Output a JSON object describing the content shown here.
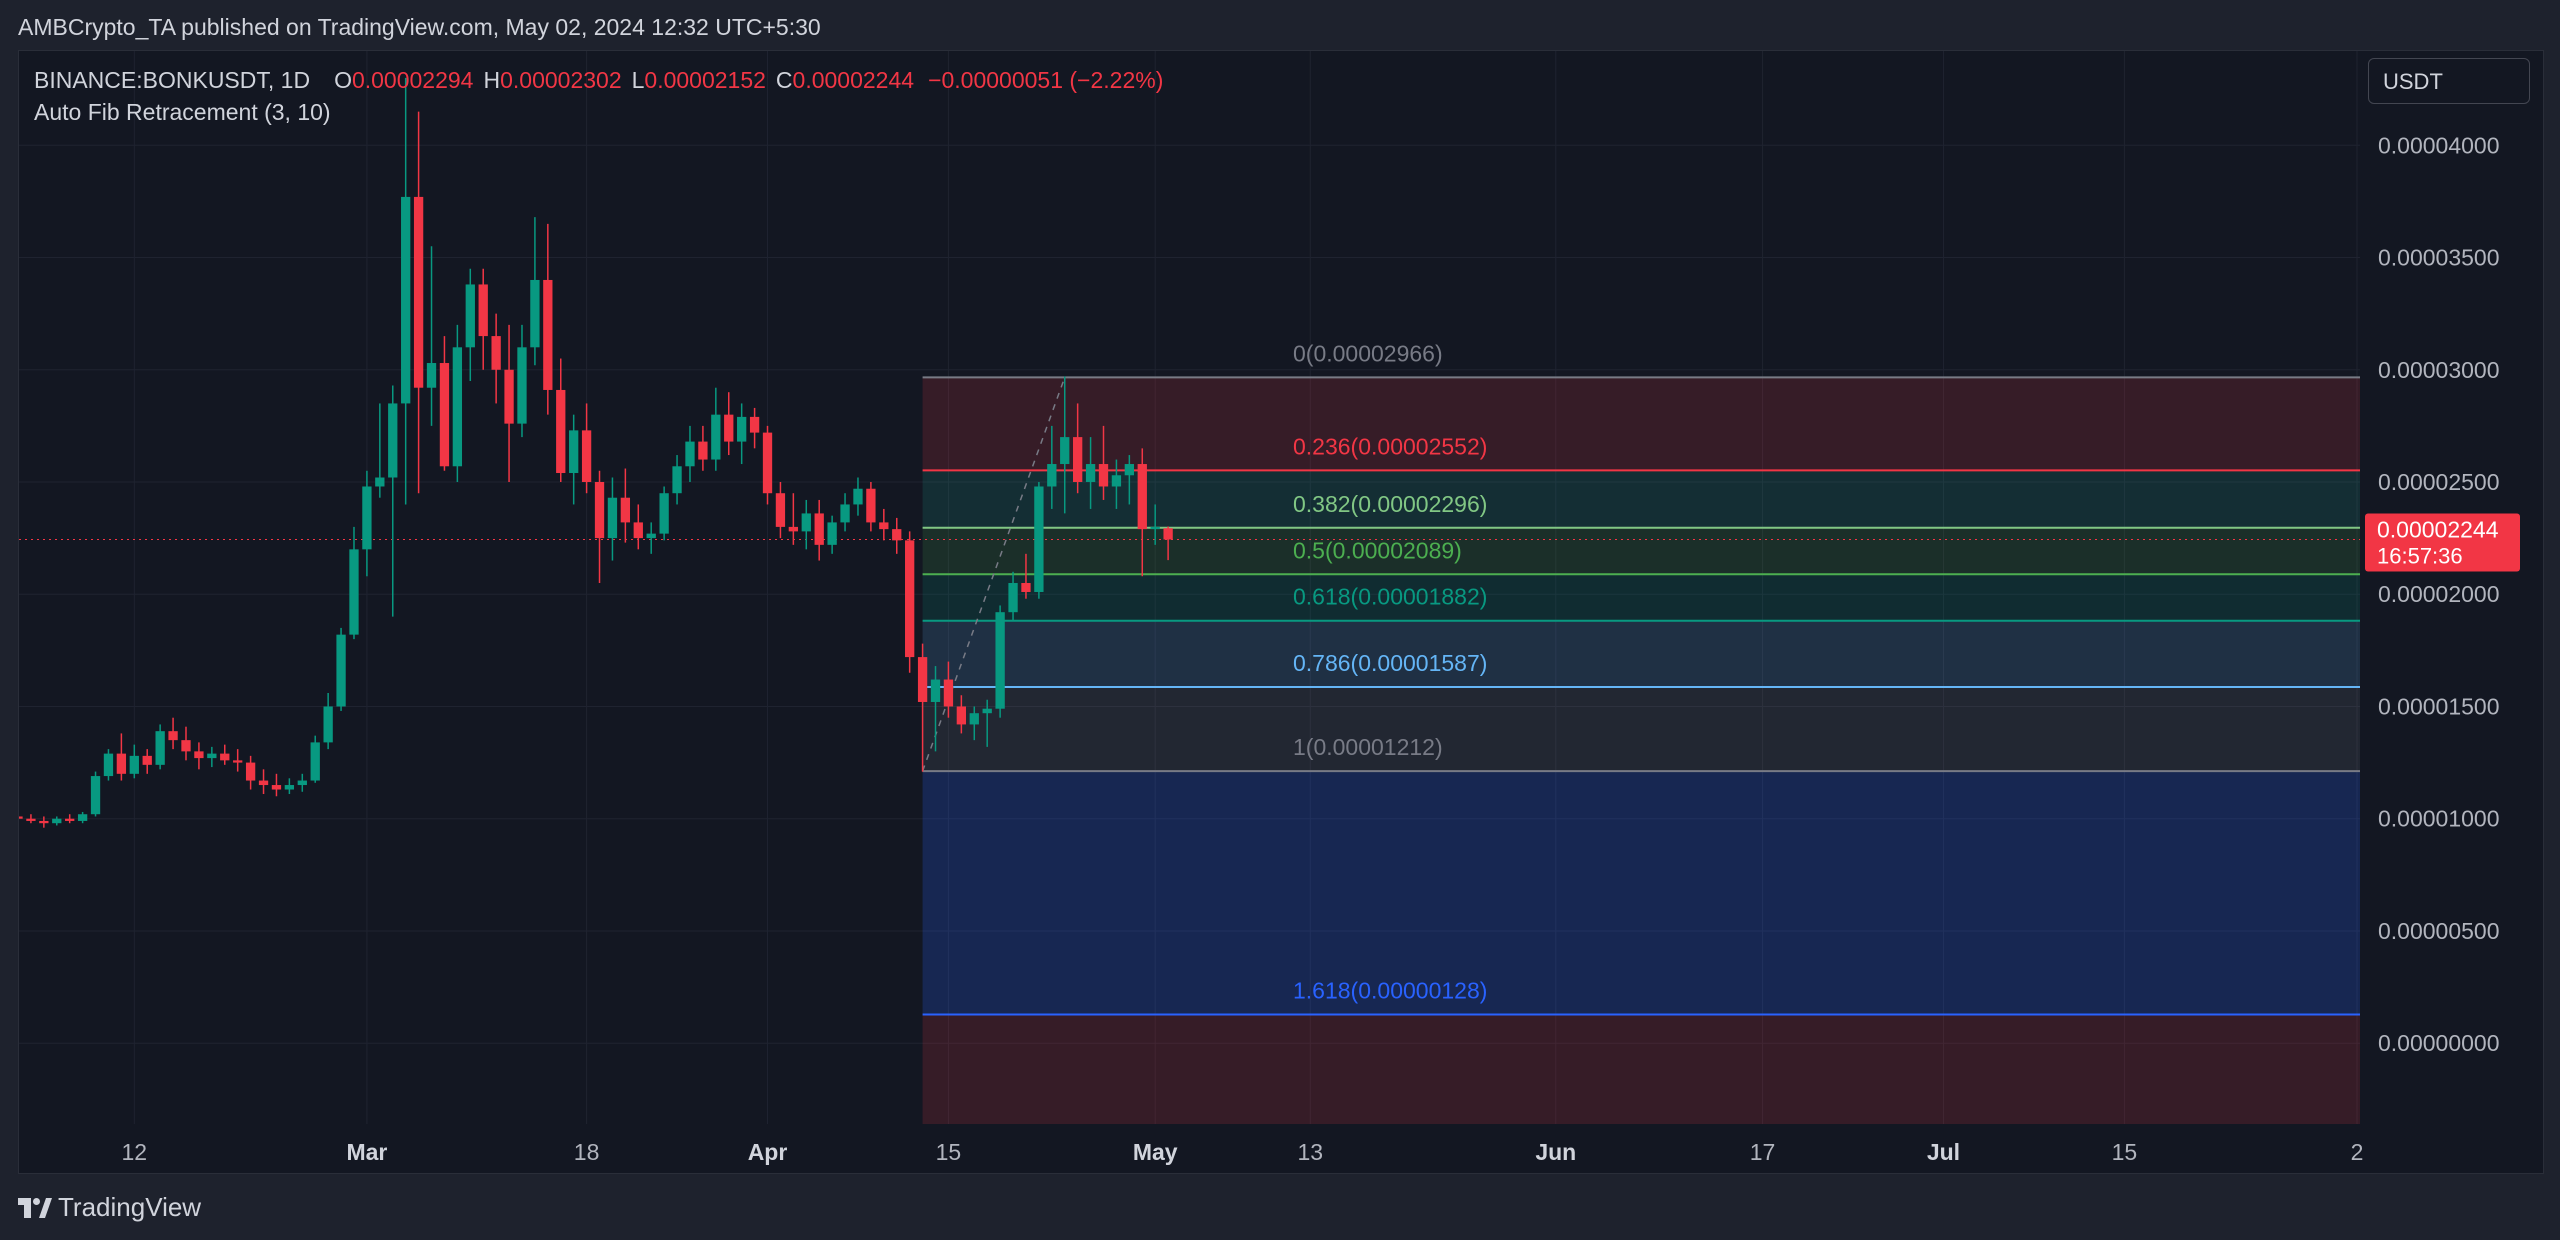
{
  "header": {
    "published_line": "AMBCrypto_TA published on TradingView.com, May 02, 2024 12:32 UTC+5:30"
  },
  "legend": {
    "symbol": "BINANCE:BONKUSDT, 1D",
    "open_label": "O",
    "open_value": "0.00002294",
    "high_label": "H",
    "high_value": "0.00002302",
    "low_label": "L",
    "low_value": "0.00002152",
    "close_label": "C",
    "close_value": "0.00002244",
    "change": "−0.00000051 (−2.22%)",
    "indicator": "Auto Fib Retracement (3, 10)"
  },
  "currency_button": "USDT",
  "price_label": {
    "price": "0.00002244",
    "countdown": "16:57:36"
  },
  "footer": {
    "brand": "TradingView",
    "logo_icon": "tradingview-logo-icon"
  },
  "colors": {
    "up": "#089981",
    "down": "#f23645",
    "background": "#131722",
    "grid": "#1f2330",
    "axis_text": "#b2b5be"
  },
  "chart_data": {
    "type": "candlestick",
    "symbol": "BINANCE:BONKUSDT",
    "interval": "1D",
    "y_axis": {
      "ticks": [
        "0.00004000",
        "0.00003500",
        "0.00003000",
        "0.00002500",
        "0.00002000",
        "0.00001500",
        "0.00001000",
        "0.00000500",
        "0.00000000"
      ],
      "tick_values": [
        4e-05,
        3.5e-05,
        3e-05,
        2.5e-05,
        2e-05,
        1.5e-05,
        1e-05,
        5e-06,
        0
      ],
      "range": [
        -3.6e-06,
        4.42e-05
      ]
    },
    "x_axis": {
      "ticks": [
        "12",
        "Mar",
        "18",
        "Apr",
        "15",
        "May",
        "13",
        "Jun",
        "17",
        "Jul",
        "15",
        "2"
      ],
      "tick_dates": [
        "2024-02-12",
        "2024-03-01",
        "2024-03-18",
        "2024-04-01",
        "2024-04-15",
        "2024-05-01",
        "2024-05-13",
        "2024-06-01",
        "2024-06-17",
        "2024-07-01",
        "2024-07-15",
        "2024-08-02"
      ],
      "range": [
        "2024-02-03",
        "2024-08-02"
      ]
    },
    "fib": {
      "start_date": "2024-04-13",
      "end_date": "2024-08-02",
      "swing_low": {
        "date": "2024-04-13",
        "value": 1.212e-05
      },
      "swing_high": {
        "date": "2024-04-24",
        "value": 2.966e-05
      },
      "levels": [
        {
          "label": "0(0.00002966)",
          "value": 2.966e-05,
          "color": "#787b86",
          "fill": "#f23645"
        },
        {
          "label": "0.236(0.00002552)",
          "value": 2.552e-05,
          "color": "#f23645",
          "fill": "#22ab94"
        },
        {
          "label": "0.382(0.00002296)",
          "value": 2.296e-05,
          "color": "#81c784",
          "fill": "#4caf50"
        },
        {
          "label": "0.5(0.00002089)",
          "value": 2.089e-05,
          "color": "#4caf50",
          "fill": "#089981"
        },
        {
          "label": "0.618(0.00001882)",
          "value": 1.882e-05,
          "color": "#089981",
          "fill": "#64b5f6"
        },
        {
          "label": "0.786(0.00001587)",
          "value": 1.587e-05,
          "color": "#64b5f6",
          "fill": "#787b86"
        },
        {
          "label": "1(0.00001212)",
          "value": 1.212e-05,
          "color": "#787b86",
          "fill": "#2962ff"
        },
        {
          "label": "1.618(0.00000128)",
          "value": 1.28e-06,
          "color": "#2962ff",
          "fill": "#f23645"
        }
      ]
    },
    "last_price": 2.244e-05,
    "candles": [
      {
        "date": "2024-02-03",
        "o": 1.01e-05,
        "h": 1.03e-05,
        "l": 9.9e-06,
        "c": 1e-05
      },
      {
        "date": "2024-02-04",
        "o": 1e-05,
        "h": 1.02e-05,
        "l": 9.8e-06,
        "c": 9.9e-06
      },
      {
        "date": "2024-02-05",
        "o": 9.9e-06,
        "h": 1.01e-05,
        "l": 9.6e-06,
        "c": 9.8e-06
      },
      {
        "date": "2024-02-06",
        "o": 9.8e-06,
        "h": 1.01e-05,
        "l": 9.7e-06,
        "c": 1e-05
      },
      {
        "date": "2024-02-07",
        "o": 1e-05,
        "h": 1.02e-05,
        "l": 9.8e-06,
        "c": 9.9e-06
      },
      {
        "date": "2024-02-08",
        "o": 9.9e-06,
        "h": 1.03e-05,
        "l": 9.8e-06,
        "c": 1.02e-05
      },
      {
        "date": "2024-02-09",
        "o": 1.02e-05,
        "h": 1.21e-05,
        "l": 1.01e-05,
        "c": 1.19e-05
      },
      {
        "date": "2024-02-10",
        "o": 1.19e-05,
        "h": 1.31e-05,
        "l": 1.17e-05,
        "c": 1.29e-05
      },
      {
        "date": "2024-02-11",
        "o": 1.29e-05,
        "h": 1.38e-05,
        "l": 1.17e-05,
        "c": 1.2e-05
      },
      {
        "date": "2024-02-12",
        "o": 1.2e-05,
        "h": 1.33e-05,
        "l": 1.18e-05,
        "c": 1.28e-05
      },
      {
        "date": "2024-02-13",
        "o": 1.28e-05,
        "h": 1.31e-05,
        "l": 1.2e-05,
        "c": 1.24e-05
      },
      {
        "date": "2024-02-14",
        "o": 1.24e-05,
        "h": 1.42e-05,
        "l": 1.22e-05,
        "c": 1.39e-05
      },
      {
        "date": "2024-02-15",
        "o": 1.39e-05,
        "h": 1.45e-05,
        "l": 1.31e-05,
        "c": 1.35e-05
      },
      {
        "date": "2024-02-16",
        "o": 1.35e-05,
        "h": 1.41e-05,
        "l": 1.26e-05,
        "c": 1.3e-05
      },
      {
        "date": "2024-02-17",
        "o": 1.3e-05,
        "h": 1.34e-05,
        "l": 1.22e-05,
        "c": 1.27e-05
      },
      {
        "date": "2024-02-18",
        "o": 1.27e-05,
        "h": 1.32e-05,
        "l": 1.23e-05,
        "c": 1.29e-05
      },
      {
        "date": "2024-02-19",
        "o": 1.29e-05,
        "h": 1.33e-05,
        "l": 1.24e-05,
        "c": 1.26e-05
      },
      {
        "date": "2024-02-20",
        "o": 1.26e-05,
        "h": 1.31e-05,
        "l": 1.21e-05,
        "c": 1.25e-05
      },
      {
        "date": "2024-02-21",
        "o": 1.25e-05,
        "h": 1.28e-05,
        "l": 1.13e-05,
        "c": 1.17e-05
      },
      {
        "date": "2024-02-22",
        "o": 1.17e-05,
        "h": 1.22e-05,
        "l": 1.11e-05,
        "c": 1.15e-05
      },
      {
        "date": "2024-02-23",
        "o": 1.15e-05,
        "h": 1.2e-05,
        "l": 1.1e-05,
        "c": 1.13e-05
      },
      {
        "date": "2024-02-24",
        "o": 1.13e-05,
        "h": 1.18e-05,
        "l": 1.11e-05,
        "c": 1.15e-05
      },
      {
        "date": "2024-02-25",
        "o": 1.15e-05,
        "h": 1.2e-05,
        "l": 1.12e-05,
        "c": 1.17e-05
      },
      {
        "date": "2024-02-26",
        "o": 1.17e-05,
        "h": 1.37e-05,
        "l": 1.16e-05,
        "c": 1.34e-05
      },
      {
        "date": "2024-02-27",
        "o": 1.34e-05,
        "h": 1.56e-05,
        "l": 1.31e-05,
        "c": 1.5e-05
      },
      {
        "date": "2024-02-28",
        "o": 1.5e-05,
        "h": 1.85e-05,
        "l": 1.48e-05,
        "c": 1.82e-05
      },
      {
        "date": "2024-02-29",
        "o": 1.82e-05,
        "h": 2.3e-05,
        "l": 1.8e-05,
        "c": 2.2e-05
      },
      {
        "date": "2024-03-01",
        "o": 2.2e-05,
        "h": 2.55e-05,
        "l": 2.08e-05,
        "c": 2.48e-05
      },
      {
        "date": "2024-03-02",
        "o": 2.48e-05,
        "h": 2.85e-05,
        "l": 2.43e-05,
        "c": 2.52e-05
      },
      {
        "date": "2024-03-03",
        "o": 2.52e-05,
        "h": 2.93e-05,
        "l": 1.9e-05,
        "c": 2.85e-05
      },
      {
        "date": "2024-03-04",
        "o": 2.85e-05,
        "h": 4.3e-05,
        "l": 2.4e-05,
        "c": 3.77e-05
      },
      {
        "date": "2024-03-05",
        "o": 3.77e-05,
        "h": 4.15e-05,
        "l": 2.45e-05,
        "c": 2.92e-05
      },
      {
        "date": "2024-03-06",
        "o": 2.92e-05,
        "h": 3.55e-05,
        "l": 2.75e-05,
        "c": 3.03e-05
      },
      {
        "date": "2024-03-07",
        "o": 3.03e-05,
        "h": 3.15e-05,
        "l": 2.55e-05,
        "c": 2.57e-05
      },
      {
        "date": "2024-03-08",
        "o": 2.57e-05,
        "h": 3.2e-05,
        "l": 2.5e-05,
        "c": 3.1e-05
      },
      {
        "date": "2024-03-09",
        "o": 3.1e-05,
        "h": 3.45e-05,
        "l": 2.95e-05,
        "c": 3.38e-05
      },
      {
        "date": "2024-03-10",
        "o": 3.38e-05,
        "h": 3.45e-05,
        "l": 3e-05,
        "c": 3.15e-05
      },
      {
        "date": "2024-03-11",
        "o": 3.15e-05,
        "h": 3.25e-05,
        "l": 2.85e-05,
        "c": 3e-05
      },
      {
        "date": "2024-03-12",
        "o": 3e-05,
        "h": 3.2e-05,
        "l": 2.5e-05,
        "c": 2.76e-05
      },
      {
        "date": "2024-03-13",
        "o": 2.76e-05,
        "h": 3.2e-05,
        "l": 2.7e-05,
        "c": 3.1e-05
      },
      {
        "date": "2024-03-14",
        "o": 3.1e-05,
        "h": 3.68e-05,
        "l": 3.02e-05,
        "c": 3.4e-05
      },
      {
        "date": "2024-03-15",
        "o": 3.4e-05,
        "h": 3.65e-05,
        "l": 2.8e-05,
        "c": 2.91e-05
      },
      {
        "date": "2024-03-16",
        "o": 2.91e-05,
        "h": 3.05e-05,
        "l": 2.5e-05,
        "c": 2.54e-05
      },
      {
        "date": "2024-03-17",
        "o": 2.54e-05,
        "h": 2.8e-05,
        "l": 2.4e-05,
        "c": 2.73e-05
      },
      {
        "date": "2024-03-18",
        "o": 2.73e-05,
        "h": 2.85e-05,
        "l": 2.45e-05,
        "c": 2.5e-05
      },
      {
        "date": "2024-03-19",
        "o": 2.5e-05,
        "h": 2.55e-05,
        "l": 2.05e-05,
        "c": 2.25e-05
      },
      {
        "date": "2024-03-20",
        "o": 2.25e-05,
        "h": 2.52e-05,
        "l": 2.15e-05,
        "c": 2.43e-05
      },
      {
        "date": "2024-03-21",
        "o": 2.43e-05,
        "h": 2.56e-05,
        "l": 2.23e-05,
        "c": 2.32e-05
      },
      {
        "date": "2024-03-22",
        "o": 2.32e-05,
        "h": 2.4e-05,
        "l": 2.2e-05,
        "c": 2.25e-05
      },
      {
        "date": "2024-03-23",
        "o": 2.25e-05,
        "h": 2.32e-05,
        "l": 2.18e-05,
        "c": 2.27e-05
      },
      {
        "date": "2024-03-24",
        "o": 2.27e-05,
        "h": 2.48e-05,
        "l": 2.24e-05,
        "c": 2.45e-05
      },
      {
        "date": "2024-03-25",
        "o": 2.45e-05,
        "h": 2.62e-05,
        "l": 2.4e-05,
        "c": 2.57e-05
      },
      {
        "date": "2024-03-26",
        "o": 2.57e-05,
        "h": 2.75e-05,
        "l": 2.5e-05,
        "c": 2.68e-05
      },
      {
        "date": "2024-03-27",
        "o": 2.68e-05,
        "h": 2.75e-05,
        "l": 2.55e-05,
        "c": 2.6e-05
      },
      {
        "date": "2024-03-28",
        "o": 2.6e-05,
        "h": 2.92e-05,
        "l": 2.55e-05,
        "c": 2.8e-05
      },
      {
        "date": "2024-03-29",
        "o": 2.8e-05,
        "h": 2.9e-05,
        "l": 2.62e-05,
        "c": 2.68e-05
      },
      {
        "date": "2024-03-30",
        "o": 2.68e-05,
        "h": 2.85e-05,
        "l": 2.58e-05,
        "c": 2.79e-05
      },
      {
        "date": "2024-03-31",
        "o": 2.79e-05,
        "h": 2.83e-05,
        "l": 2.65e-05,
        "c": 2.72e-05
      },
      {
        "date": "2024-04-01",
        "o": 2.72e-05,
        "h": 2.75e-05,
        "l": 2.4e-05,
        "c": 2.45e-05
      },
      {
        "date": "2024-04-02",
        "o": 2.45e-05,
        "h": 2.5e-05,
        "l": 2.25e-05,
        "c": 2.3e-05
      },
      {
        "date": "2024-04-03",
        "o": 2.3e-05,
        "h": 2.45e-05,
        "l": 2.22e-05,
        "c": 2.28e-05
      },
      {
        "date": "2024-04-04",
        "o": 2.28e-05,
        "h": 2.42e-05,
        "l": 2.2e-05,
        "c": 2.36e-05
      },
      {
        "date": "2024-04-05",
        "o": 2.36e-05,
        "h": 2.42e-05,
        "l": 2.15e-05,
        "c": 2.22e-05
      },
      {
        "date": "2024-04-06",
        "o": 2.22e-05,
        "h": 2.35e-05,
        "l": 2.18e-05,
        "c": 2.32e-05
      },
      {
        "date": "2024-04-07",
        "o": 2.32e-05,
        "h": 2.45e-05,
        "l": 2.28e-05,
        "c": 2.4e-05
      },
      {
        "date": "2024-04-08",
        "o": 2.4e-05,
        "h": 2.52e-05,
        "l": 2.35e-05,
        "c": 2.47e-05
      },
      {
        "date": "2024-04-09",
        "o": 2.47e-05,
        "h": 2.5e-05,
        "l": 2.28e-05,
        "c": 2.32e-05
      },
      {
        "date": "2024-04-10",
        "o": 2.32e-05,
        "h": 2.38e-05,
        "l": 2.24e-05,
        "c": 2.29e-05
      },
      {
        "date": "2024-04-11",
        "o": 2.29e-05,
        "h": 2.34e-05,
        "l": 2.18e-05,
        "c": 2.24e-05
      },
      {
        "date": "2024-04-12",
        "o": 2.24e-05,
        "h": 2.28e-05,
        "l": 1.65e-05,
        "c": 1.72e-05
      },
      {
        "date": "2024-04-13",
        "o": 1.72e-05,
        "h": 1.78e-05,
        "l": 1.21e-05,
        "c": 1.52e-05
      },
      {
        "date": "2024-04-14",
        "o": 1.52e-05,
        "h": 1.68e-05,
        "l": 1.3e-05,
        "c": 1.62e-05
      },
      {
        "date": "2024-04-15",
        "o": 1.62e-05,
        "h": 1.7e-05,
        "l": 1.45e-05,
        "c": 1.5e-05
      },
      {
        "date": "2024-04-16",
        "o": 1.5e-05,
        "h": 1.55e-05,
        "l": 1.38e-05,
        "c": 1.42e-05
      },
      {
        "date": "2024-04-17",
        "o": 1.42e-05,
        "h": 1.5e-05,
        "l": 1.35e-05,
        "c": 1.47e-05
      },
      {
        "date": "2024-04-18",
        "o": 1.47e-05,
        "h": 1.53e-05,
        "l": 1.32e-05,
        "c": 1.49e-05
      },
      {
        "date": "2024-04-19",
        "o": 1.49e-05,
        "h": 1.95e-05,
        "l": 1.45e-05,
        "c": 1.92e-05
      },
      {
        "date": "2024-04-20",
        "o": 1.92e-05,
        "h": 2.1e-05,
        "l": 1.88e-05,
        "c": 2.05e-05
      },
      {
        "date": "2024-04-21",
        "o": 2.05e-05,
        "h": 2.18e-05,
        "l": 1.98e-05,
        "c": 2.01e-05
      },
      {
        "date": "2024-04-22",
        "o": 2.01e-05,
        "h": 2.5e-05,
        "l": 1.98e-05,
        "c": 2.48e-05
      },
      {
        "date": "2024-04-23",
        "o": 2.48e-05,
        "h": 2.75e-05,
        "l": 2.38e-05,
        "c": 2.58e-05
      },
      {
        "date": "2024-04-24",
        "o": 2.58e-05,
        "h": 2.97e-05,
        "l": 2.36e-05,
        "c": 2.7e-05
      },
      {
        "date": "2024-04-25",
        "o": 2.7e-05,
        "h": 2.85e-05,
        "l": 2.45e-05,
        "c": 2.5e-05
      },
      {
        "date": "2024-04-26",
        "o": 2.5e-05,
        "h": 2.7e-05,
        "l": 2.38e-05,
        "c": 2.58e-05
      },
      {
        "date": "2024-04-27",
        "o": 2.58e-05,
        "h": 2.75e-05,
        "l": 2.42e-05,
        "c": 2.48e-05
      },
      {
        "date": "2024-04-28",
        "o": 2.48e-05,
        "h": 2.6e-05,
        "l": 2.38e-05,
        "c": 2.53e-05
      },
      {
        "date": "2024-04-29",
        "o": 2.53e-05,
        "h": 2.62e-05,
        "l": 2.4e-05,
        "c": 2.58e-05
      },
      {
        "date": "2024-04-30",
        "o": 2.58e-05,
        "h": 2.65e-05,
        "l": 2.08e-05,
        "c": 2.29e-05
      },
      {
        "date": "2024-05-01",
        "o": 2.29e-05,
        "h": 2.4e-05,
        "l": 2.22e-05,
        "c": 2.3e-05
      },
      {
        "date": "2024-05-02",
        "o": 2.294e-05,
        "h": 2.302e-05,
        "l": 2.152e-05,
        "c": 2.244e-05
      }
    ]
  }
}
